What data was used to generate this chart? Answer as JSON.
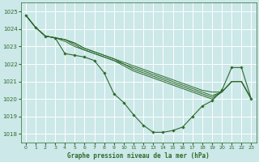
{
  "title": "Graphe pression niveau de la mer (hPa)",
  "xlim": [
    -0.5,
    23.5
  ],
  "ylim": [
    1017.5,
    1025.5
  ],
  "yticks": [
    1018,
    1019,
    1020,
    1021,
    1022,
    1023,
    1024,
    1025
  ],
  "xticks": [
    0,
    1,
    2,
    3,
    4,
    5,
    6,
    7,
    8,
    9,
    10,
    11,
    12,
    13,
    14,
    15,
    16,
    17,
    18,
    19,
    20,
    21,
    22,
    23
  ],
  "bg_color": "#cce8e8",
  "grid_color": "#ffffff",
  "line_color": "#2d6a2d",
  "figsize": [
    3.2,
    2.0
  ],
  "dpi": 100,
  "series": [
    {
      "x": [
        0,
        1,
        2,
        3,
        4,
        5,
        6,
        7,
        8,
        9,
        10,
        11,
        12,
        13,
        14,
        15,
        16,
        17,
        18,
        19,
        20,
        21,
        22,
        23
      ],
      "y": [
        1024.8,
        1024.1,
        1023.6,
        1023.5,
        1023.4,
        1023.2,
        1022.9,
        1022.7,
        1022.5,
        1022.3,
        1022.1,
        1021.9,
        1021.7,
        1021.5,
        1021.3,
        1021.1,
        1020.9,
        1020.7,
        1020.5,
        1020.4,
        1020.4,
        1021.0,
        1021.0,
        1020.0
      ],
      "marker": false
    },
    {
      "x": [
        0,
        1,
        2,
        3,
        4,
        5,
        6,
        7,
        8,
        9,
        10,
        11,
        12,
        13,
        14,
        15,
        16,
        17,
        18,
        19,
        20,
        21,
        22,
        23
      ],
      "y": [
        1024.8,
        1024.1,
        1023.6,
        1023.5,
        1023.4,
        1023.2,
        1022.9,
        1022.7,
        1022.5,
        1022.3,
        1022.0,
        1021.8,
        1021.6,
        1021.4,
        1021.2,
        1021.0,
        1020.8,
        1020.6,
        1020.4,
        1020.2,
        1020.4,
        1021.0,
        1021.0,
        1020.0
      ],
      "marker": false
    },
    {
      "x": [
        0,
        1,
        2,
        3,
        4,
        5,
        6,
        7,
        8,
        9,
        10,
        11,
        12,
        13,
        14,
        15,
        16,
        17,
        18,
        19,
        20,
        21,
        22,
        23
      ],
      "y": [
        1024.8,
        1024.1,
        1023.6,
        1023.5,
        1023.4,
        1023.1,
        1022.8,
        1022.6,
        1022.4,
        1022.2,
        1022.0,
        1021.7,
        1021.5,
        1021.3,
        1021.1,
        1020.9,
        1020.7,
        1020.5,
        1020.3,
        1020.1,
        1020.4,
        1021.0,
        1021.0,
        1020.0
      ],
      "marker": false
    },
    {
      "x": [
        0,
        1,
        2,
        3,
        4,
        5,
        6,
        7,
        8,
        9,
        10,
        11,
        12,
        13,
        14,
        15,
        16,
        17,
        18,
        19,
        20,
        21,
        22,
        23
      ],
      "y": [
        1024.8,
        1024.1,
        1023.6,
        1023.5,
        1023.3,
        1023.0,
        1022.8,
        1022.6,
        1022.4,
        1022.2,
        1021.9,
        1021.6,
        1021.4,
        1021.2,
        1021.0,
        1020.8,
        1020.6,
        1020.4,
        1020.2,
        1020.0,
        1020.4,
        1021.0,
        1021.0,
        1020.0
      ],
      "marker": false
    },
    {
      "x": [
        0,
        1,
        2,
        3,
        4,
        5,
        6,
        7,
        8,
        9,
        10,
        11,
        12,
        13,
        14,
        15,
        16,
        17,
        18,
        19,
        20,
        21,
        22,
        23
      ],
      "y": [
        1024.8,
        1024.1,
        1023.6,
        1023.5,
        1022.6,
        1022.5,
        1022.4,
        1022.2,
        1021.5,
        1020.3,
        1019.8,
        1019.1,
        1018.5,
        1018.1,
        1018.1,
        1018.2,
        1018.4,
        1019.0,
        1019.6,
        1019.9,
        1020.5,
        1021.8,
        1021.8,
        1020.0
      ],
      "marker": true
    }
  ]
}
